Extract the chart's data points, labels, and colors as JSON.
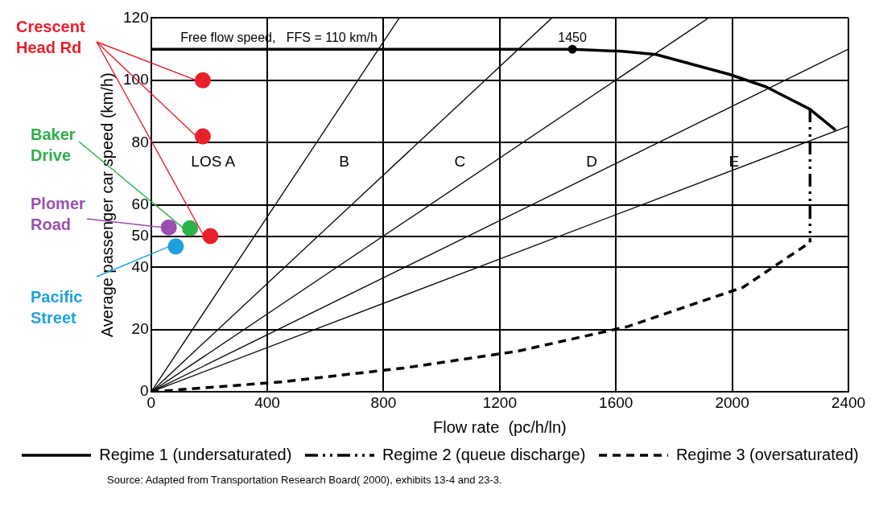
{
  "chart_data": {
    "type": "line",
    "xlabel": "Flow rate  (pc/h/ln)",
    "ylabel": "Average passenger car speed (km/h)",
    "xlim": [
      0,
      2400
    ],
    "xticks": [
      0,
      400,
      800,
      1200,
      1600,
      2000,
      2400
    ],
    "ylim": [
      0,
      120
    ],
    "yticks": [
      0,
      20,
      40,
      50,
      60,
      80,
      100,
      120
    ],
    "grid": true,
    "legend": "bottom",
    "marker": "none",
    "series": [
      {
        "name": "Regime 1 (undersaturated)",
        "color": "#000000",
        "line_style": "solid",
        "x": [
          0,
          1450,
          1621,
          1738,
          1991,
          2117,
          2268,
          2356
        ],
        "values": [
          110,
          110,
          109.3,
          108.3,
          101.9,
          97.9,
          90.7,
          84
        ]
      },
      {
        "name": "Regime 2 (queue discharge)",
        "color": "#000000",
        "line_style": "dashdot",
        "x": [
          2268,
          2268
        ],
        "values": [
          90.7,
          48
        ]
      },
      {
        "name": "Regime 3 (oversaturated)",
        "color": "#000000",
        "line_style": "dashed",
        "x": [
          0,
          449,
          872,
          1259,
          1641,
          2038,
          2268
        ],
        "values": [
          0,
          3.2,
          7.7,
          13,
          21,
          33.6,
          48
        ]
      },
      {
        "type": "line",
        "color": "#000000",
        "line_style": "solid",
        "x": [
          0,
          854
        ],
        "values": [
          0,
          120
        ]
      },
      {
        "type": "line",
        "color": "#000000",
        "line_style": "solid",
        "x": [
          0,
          1379
        ],
        "values": [
          0,
          120
        ]
      },
      {
        "type": "line",
        "color": "#000000",
        "line_style": "solid",
        "x": [
          0,
          1918
        ],
        "values": [
          0,
          120
        ]
      },
      {
        "type": "line",
        "color": "#000000",
        "line_style": "solid",
        "x": [
          0,
          2400
        ],
        "values": [
          0,
          110
        ]
      },
      {
        "type": "line",
        "color": "#000000",
        "line_style": "solid",
        "x": [
          0,
          2400
        ],
        "values": [
          0,
          85.3
        ]
      },
      {
        "type": "scatter",
        "color": "#000000",
        "marker": "circle",
        "x": [
          1450
        ],
        "values": [
          110
        ]
      },
      {
        "type": "scatter",
        "name": "Crescent Head Rd",
        "color": "#e8202a",
        "marker": "circle",
        "x": [
          178,
          178,
          204
        ],
        "values": [
          100,
          82,
          50
        ]
      },
      {
        "type": "scatter",
        "name": "Baker Drive",
        "color": "#2db04a",
        "marker": "circle",
        "x": [
          134
        ],
        "values": [
          52.5
        ]
      },
      {
        "type": "scatter",
        "name": "Plomer Road",
        "color": "#9b4fb0",
        "marker": "circle",
        "x": [
          61
        ],
        "values": [
          52.8
        ]
      },
      {
        "type": "scatter",
        "name": "Pacific Street",
        "color": "#1ea0e0",
        "marker": "circle",
        "x": [
          85
        ],
        "values": [
          46.7
        ]
      }
    ],
    "annotations": [
      {
        "text": "1450",
        "x": 1450,
        "y": 110
      },
      {
        "text": "Free flow speed,   FFS = 110 km/h",
        "x": 440,
        "y": 110
      },
      "LOS A",
      "B",
      "C",
      "D",
      "E",
      "Source:  Adapted from Transportation Research Board( 2000), exhibits 13-4 and 23-3."
    ]
  }
}
